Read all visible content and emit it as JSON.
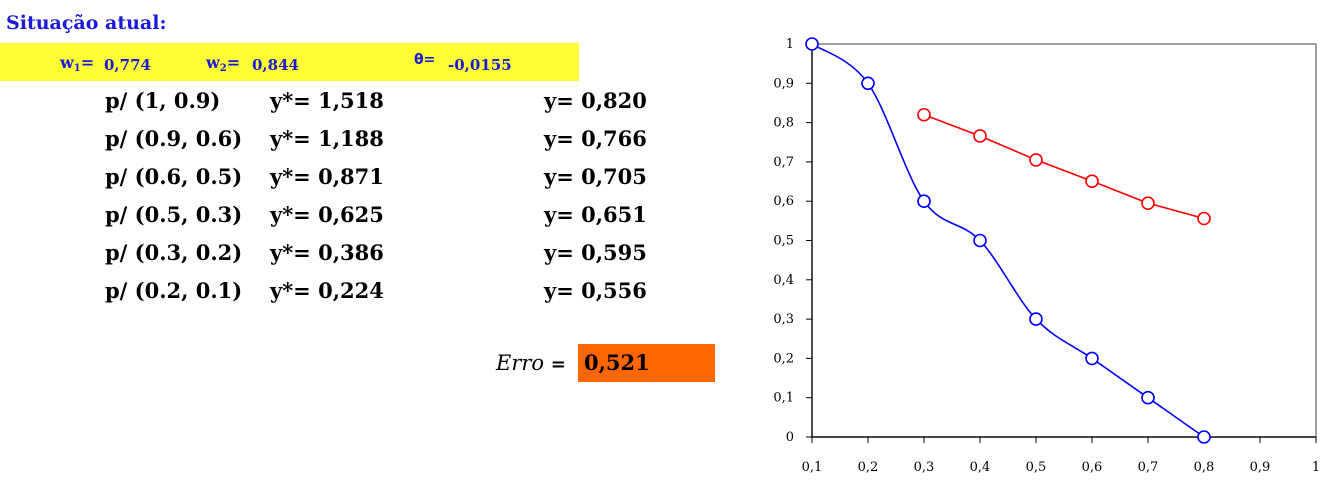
{
  "header": {
    "title": "Situação atual:"
  },
  "weights": {
    "w1_label": "w",
    "w1_sub": "1",
    "w1_eq": "=",
    "w1_value": "0,774",
    "w2_label": "w",
    "w2_sub": "2",
    "w2_eq": "=",
    "w2_value": "0,844",
    "theta_label": "θ=",
    "theta_value": "-0,0155"
  },
  "rows": [
    {
      "pattern": "p/ (1, 0.9)",
      "ystar": "y*= 1,518",
      "y": "y= 0,820"
    },
    {
      "pattern": "p/ (0.9, 0.6)",
      "ystar": "y*= 1,188",
      "y": "y= 0,766"
    },
    {
      "pattern": "p/ (0.6, 0.5)",
      "ystar": "y*= 0,871",
      "y": "y= 0,705"
    },
    {
      "pattern": "p/ (0.5, 0.3)",
      "ystar": "y*= 0,625",
      "y": "y= 0,651"
    },
    {
      "pattern": "p/ (0.3, 0.2)",
      "ystar": "y*= 0,386",
      "y": "y= 0,595"
    },
    {
      "pattern": "p/ (0.2, 0.1)",
      "ystar": "y*= 0,224",
      "y": "y= 0,556"
    }
  ],
  "error": {
    "label": "Erro",
    "eq": "=",
    "value": "0,521",
    "box_color": "#ff6600"
  },
  "chart_data": {
    "type": "line",
    "x_ticks": [
      "0,1",
      "0,2",
      "0,3",
      "0,4",
      "0,5",
      "0,6",
      "0,7",
      "0,8",
      "0,9",
      "1"
    ],
    "y_ticks": [
      "0",
      "0,1",
      "0,2",
      "0,3",
      "0,4",
      "0,5",
      "0,6",
      "0,7",
      "0,8",
      "0,9",
      "1"
    ],
    "xlim": [
      0.1,
      1.0
    ],
    "ylim": [
      0,
      1
    ],
    "grid": false,
    "legend": "none",
    "series": [
      {
        "color": "#0000ff",
        "smooth": true,
        "points": [
          [
            0.1,
            1.0
          ],
          [
            0.2,
            0.9
          ],
          [
            0.3,
            0.6
          ],
          [
            0.4,
            0.5
          ],
          [
            0.5,
            0.3
          ],
          [
            0.6,
            0.2
          ],
          [
            0.7,
            0.1
          ],
          [
            0.8,
            0.0
          ]
        ]
      },
      {
        "color": "#ff0000",
        "smooth": false,
        "points": [
          [
            0.3,
            0.82
          ],
          [
            0.4,
            0.766
          ],
          [
            0.5,
            0.705
          ],
          [
            0.6,
            0.651
          ],
          [
            0.7,
            0.595
          ],
          [
            0.8,
            0.556
          ]
        ]
      }
    ]
  }
}
